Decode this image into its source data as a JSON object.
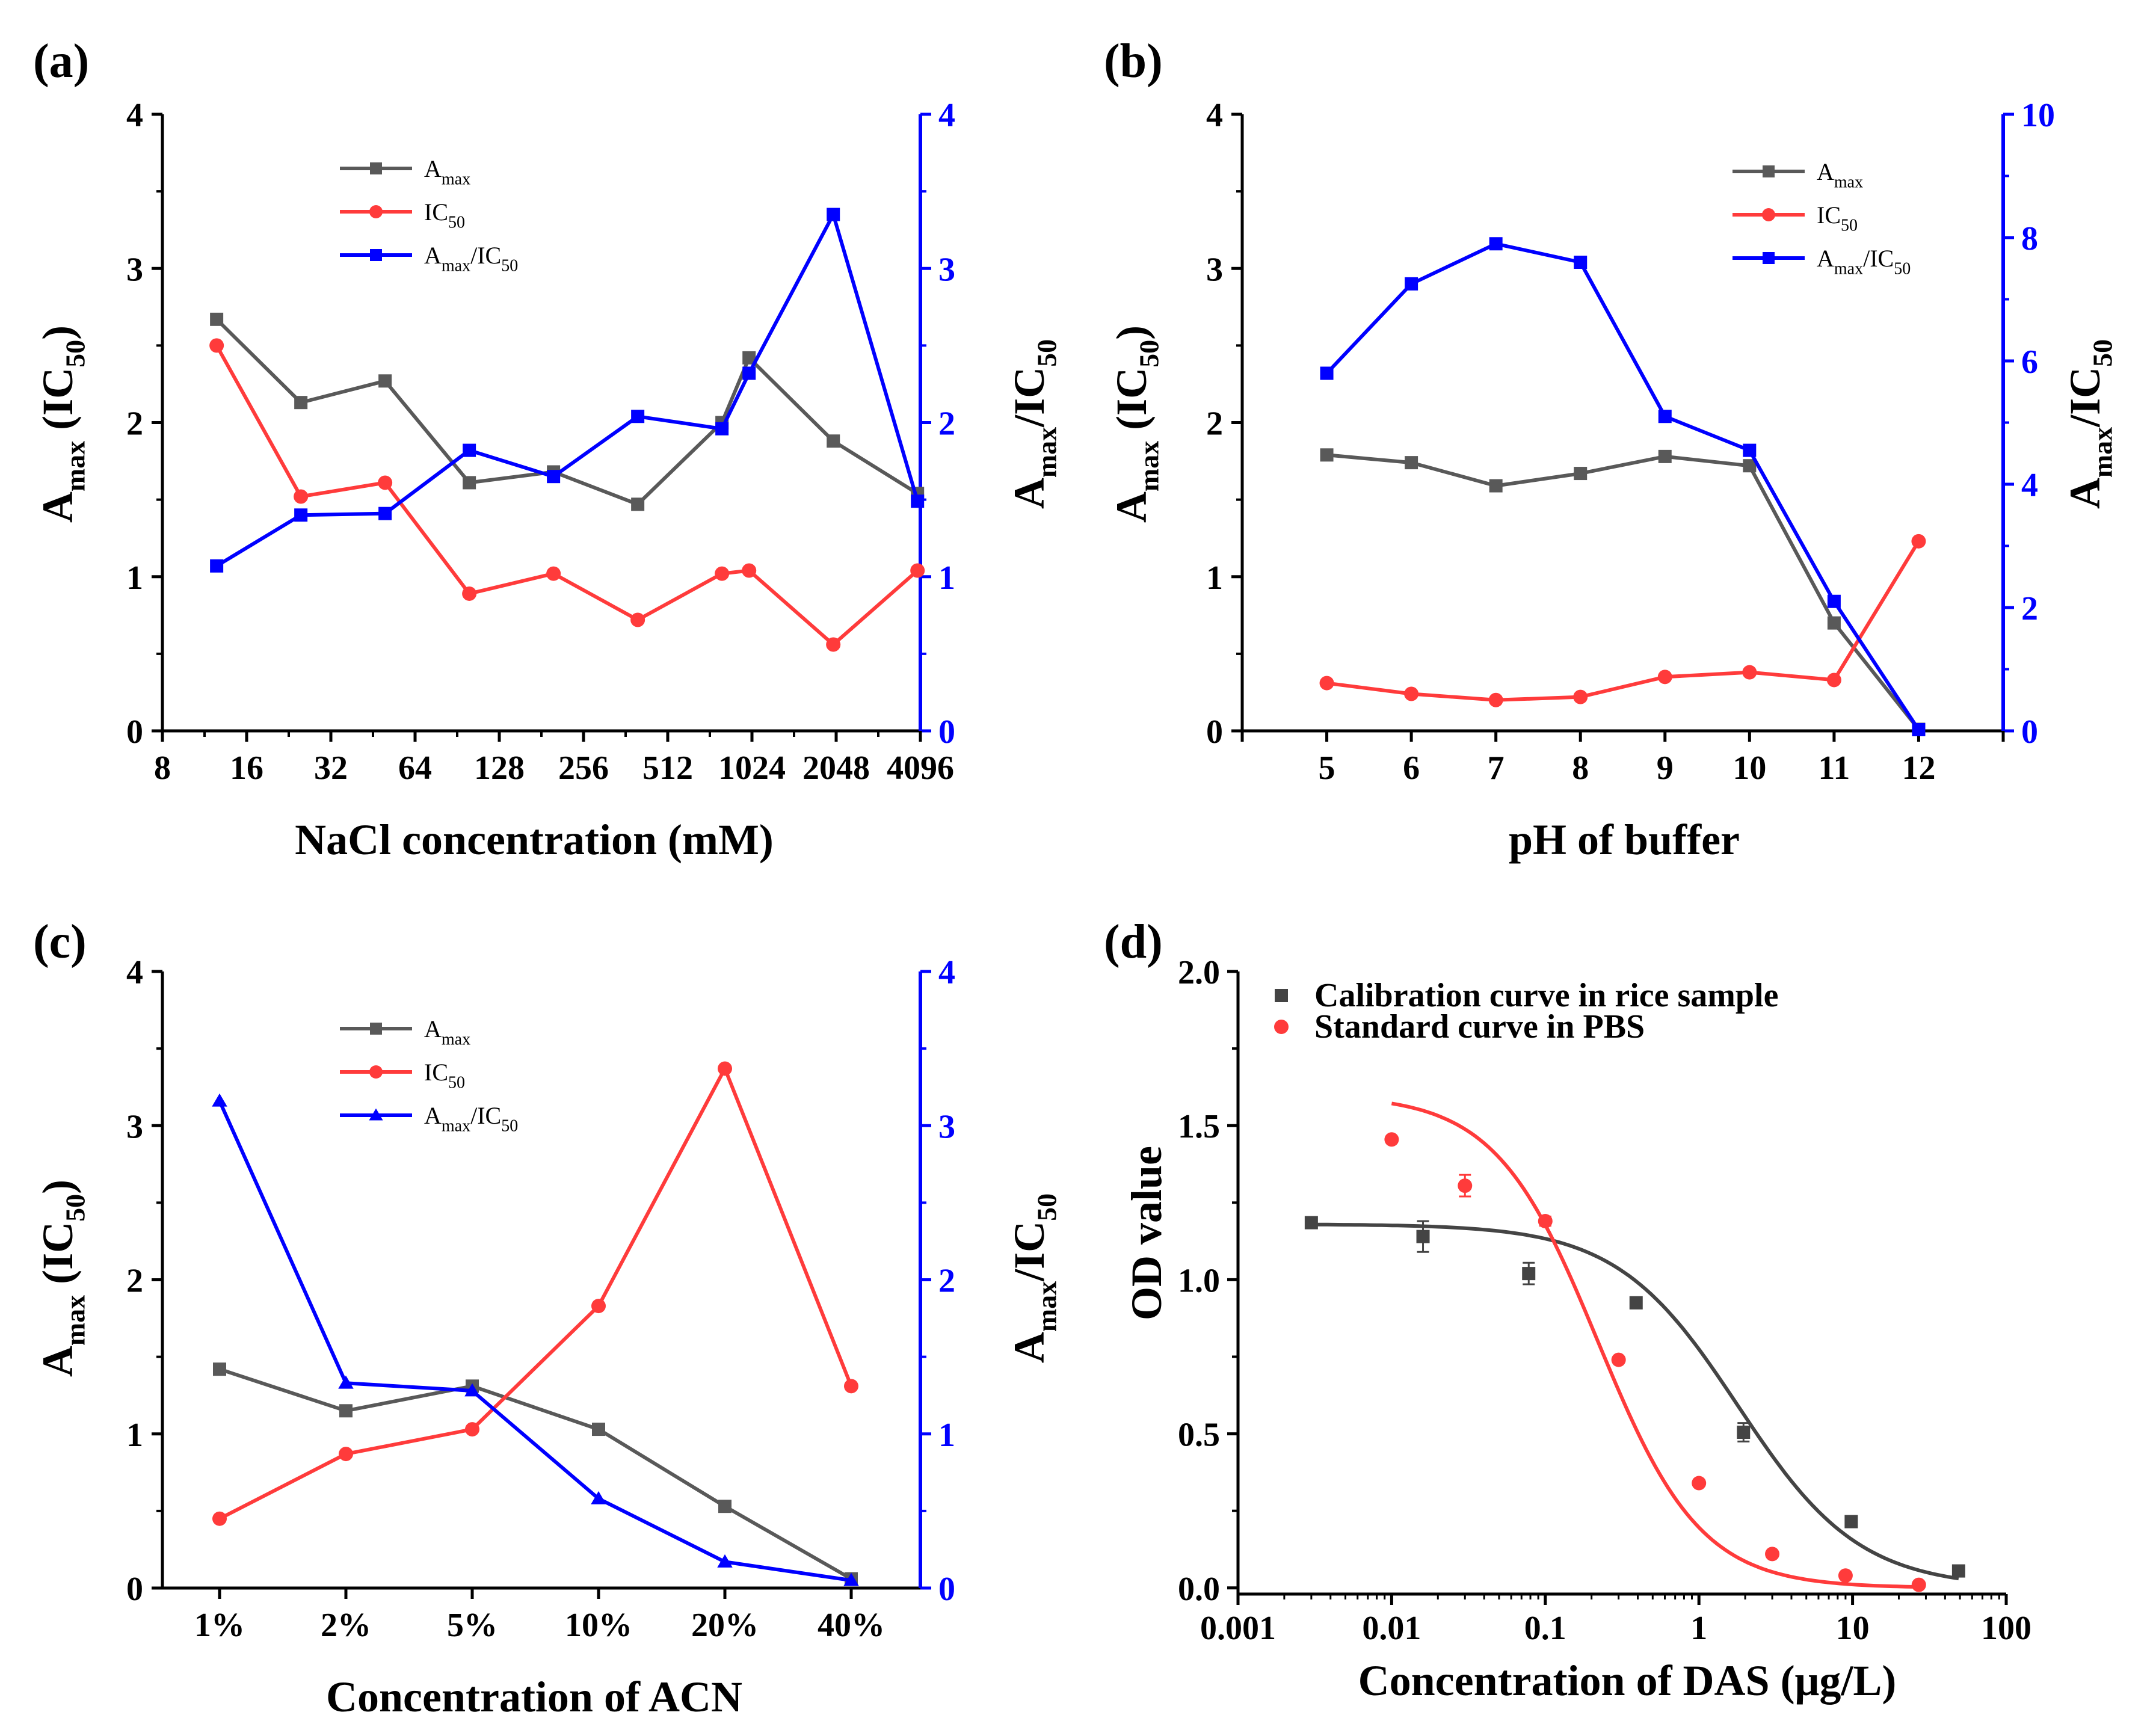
{
  "figure": {
    "panels": {
      "a": {
        "label": "(a)"
      },
      "b": {
        "label": "(b)"
      },
      "c": {
        "label": "(c)"
      },
      "d": {
        "label": "(d)"
      }
    }
  },
  "chart_data": [
    {
      "id": "a",
      "type": "line",
      "xscale": "log2",
      "xlabel": "NaCl concentration (mM)",
      "ylabel_left": {
        "base": "A",
        "sub": "max",
        "rest": " (IC",
        "sub2": "50",
        "end": ")"
      },
      "ylabel_right": {
        "base": "A",
        "sub": "max",
        "rest": "/IC",
        "sub2": "50",
        "end": ""
      },
      "x_ticks": [
        8,
        16,
        32,
        64,
        128,
        256,
        512,
        1024,
        2048,
        4096
      ],
      "x_tick_labels": [
        "8",
        "16",
        "32",
        "64",
        "128",
        "256",
        "512",
        "1024",
        "2048",
        "4096"
      ],
      "xlim": [
        8,
        4096
      ],
      "ylim_left": [
        0,
        4
      ],
      "y_ticks_left": [
        0,
        1,
        2,
        3,
        4
      ],
      "ylim_right": [
        0,
        4
      ],
      "y_ticks_right": [
        0,
        1,
        2,
        3,
        4
      ],
      "series": [
        {
          "name": "Amax",
          "legend": {
            "base": "A",
            "sub": "max"
          },
          "axis": "left",
          "color": "#595959",
          "marker": "square",
          "x": [
            12.5,
            25,
            50,
            100,
            200,
            400,
            800,
            1000,
            2000,
            4000
          ],
          "y": [
            2.67,
            2.13,
            2.27,
            1.61,
            1.68,
            1.47,
            2.0,
            2.42,
            1.88,
            1.54
          ]
        },
        {
          "name": "IC50",
          "legend": {
            "base": "IC",
            "sub": "50"
          },
          "axis": "left",
          "color": "#ff3b3b",
          "marker": "circle",
          "x": [
            12.5,
            25,
            50,
            100,
            200,
            400,
            800,
            1000,
            2000,
            4000
          ],
          "y": [
            2.5,
            1.52,
            1.61,
            0.89,
            1.02,
            0.72,
            1.02,
            1.04,
            0.56,
            1.04
          ]
        },
        {
          "name": "Amax/IC50",
          "legend": {
            "base": "A",
            "sub": "max",
            "rest": "/IC",
            "sub2": "50"
          },
          "axis": "right",
          "color": "#0000ff",
          "marker": "square",
          "x": [
            12.5,
            25,
            50,
            100,
            200,
            400,
            800,
            1000,
            2000,
            4000
          ],
          "y": [
            1.07,
            1.4,
            1.41,
            1.82,
            1.65,
            2.04,
            1.96,
            2.32,
            3.35,
            1.49
          ]
        }
      ]
    },
    {
      "id": "b",
      "type": "line",
      "xscale": "linear",
      "xlabel": "pH of buffer",
      "ylabel_left": {
        "base": "A",
        "sub": "max",
        "rest": " (IC",
        "sub2": "50",
        "end": ")"
      },
      "ylabel_right": {
        "base": "A",
        "sub": "max",
        "rest": "/IC",
        "sub2": "50",
        "end": ""
      },
      "x_ticks": [
        5,
        6,
        7,
        8,
        9,
        10,
        11,
        12
      ],
      "x_tick_labels": [
        "5",
        "6",
        "7",
        "8",
        "9",
        "10",
        "11",
        "12"
      ],
      "xlim": [
        4,
        13
      ],
      "ylim_left": [
        0,
        4
      ],
      "y_ticks_left": [
        0,
        1,
        2,
        3,
        4
      ],
      "ylim_right": [
        0,
        10
      ],
      "y_ticks_right": [
        0,
        2,
        4,
        6,
        8,
        10
      ],
      "series": [
        {
          "name": "Amax",
          "legend": {
            "base": "A",
            "sub": "max"
          },
          "axis": "left",
          "color": "#595959",
          "marker": "square",
          "x": [
            5,
            6,
            7,
            8,
            9,
            10,
            11,
            12
          ],
          "y": [
            1.79,
            1.74,
            1.59,
            1.67,
            1.78,
            1.72,
            0.7,
            0.01
          ]
        },
        {
          "name": "IC50",
          "legend": {
            "base": "IC",
            "sub": "50"
          },
          "axis": "left",
          "color": "#ff3b3b",
          "marker": "circle",
          "x": [
            5,
            6,
            7,
            8,
            9,
            10,
            11,
            12
          ],
          "y": [
            0.31,
            0.24,
            0.2,
            0.22,
            0.35,
            0.38,
            0.33,
            1.23
          ]
        },
        {
          "name": "Amax/IC50",
          "legend": {
            "base": "A",
            "sub": "max",
            "rest": "/IC",
            "sub2": "50"
          },
          "axis": "right",
          "color": "#0000ff",
          "marker": "square",
          "x": [
            5,
            6,
            7,
            8,
            9,
            10,
            11,
            12
          ],
          "y": [
            5.8,
            7.25,
            7.9,
            7.6,
            5.1,
            4.55,
            2.1,
            0.02
          ]
        }
      ]
    },
    {
      "id": "c",
      "type": "line",
      "xscale": "category",
      "xlabel": "Concentration of ACN",
      "ylabel_left": {
        "base": "A",
        "sub": "max",
        "rest": " (IC",
        "sub2": "50",
        "end": ")"
      },
      "ylabel_right": {
        "base": "A",
        "sub": "max",
        "rest": "/IC",
        "sub2": "50",
        "end": ""
      },
      "categories": [
        "1%",
        "2%",
        "5%",
        "10%",
        "20%",
        "40%"
      ],
      "ylim_left": [
        0,
        4
      ],
      "y_ticks_left": [
        0,
        1,
        2,
        3,
        4
      ],
      "ylim_right": [
        0,
        4
      ],
      "y_ticks_right": [
        0,
        1,
        2,
        3,
        4
      ],
      "series": [
        {
          "name": "Amax",
          "legend": {
            "base": "A",
            "sub": "max"
          },
          "axis": "left",
          "color": "#595959",
          "marker": "square",
          "y": [
            1.42,
            1.15,
            1.31,
            1.03,
            0.53,
            0.06
          ]
        },
        {
          "name": "IC50",
          "legend": {
            "base": "IC",
            "sub": "50"
          },
          "axis": "left",
          "color": "#ff3b3b",
          "marker": "circle",
          "y": [
            0.45,
            0.87,
            1.03,
            1.83,
            3.37,
            1.31
          ]
        },
        {
          "name": "Amax/IC50",
          "legend": {
            "base": "A",
            "sub": "max",
            "rest": "/IC",
            "sub2": "50"
          },
          "axis": "right",
          "color": "#0000ff",
          "marker": "triangle",
          "y": [
            3.16,
            1.33,
            1.28,
            0.58,
            0.17,
            0.05
          ]
        }
      ]
    },
    {
      "id": "d",
      "type": "scatter",
      "xscale": "log10",
      "xlabel": "Concentration of DAS (μg/L)",
      "ylabel": "OD value",
      "x_ticks": [
        0.001,
        0.01,
        0.1,
        1,
        10,
        100
      ],
      "x_tick_labels": [
        "0.001",
        "0.01",
        "0.1",
        "1",
        "10",
        "100"
      ],
      "xlim": [
        0.001,
        100
      ],
      "ylim": [
        -0.02,
        2.0
      ],
      "y_ticks": [
        0,
        0.5,
        1.0,
        1.5,
        2.0
      ],
      "y_tick_labels": [
        "0.0",
        "0.5",
        "1.0",
        "1.5",
        "2.0"
      ],
      "series": [
        {
          "name": "Calibration curve in rice sample",
          "color": "#444444",
          "marker": "square",
          "x": [
            0.003,
            0.016,
            0.078,
            0.39,
            1.95,
            9.8,
            49
          ],
          "y": [
            1.185,
            1.14,
            1.02,
            0.925,
            0.505,
            0.215,
            0.055
          ],
          "err": [
            0.005,
            0.05,
            0.035,
            0.01,
            0.03,
            0.01,
            0.005
          ],
          "fit": {
            "model": "4PL",
            "A1": 1.18,
            "A2": 0.0,
            "x0": 1.8,
            "p": 1.1
          }
        },
        {
          "name": "Standard curve in PBS",
          "color": "#ff3b3b",
          "marker": "circle",
          "x": [
            0.01,
            0.03,
            0.1,
            0.3,
            1,
            3,
            9,
            27
          ],
          "y": [
            1.455,
            1.305,
            1.19,
            0.74,
            0.34,
            0.11,
            0.04,
            0.01
          ],
          "err": [
            0.005,
            0.035,
            0.015,
            0.01,
            0.01,
            0.005,
            0.005,
            0.005
          ],
          "fit": {
            "model": "4PL",
            "A1": 1.6,
            "A2": 0.0,
            "x0": 0.22,
            "p": 1.3
          }
        }
      ]
    }
  ]
}
